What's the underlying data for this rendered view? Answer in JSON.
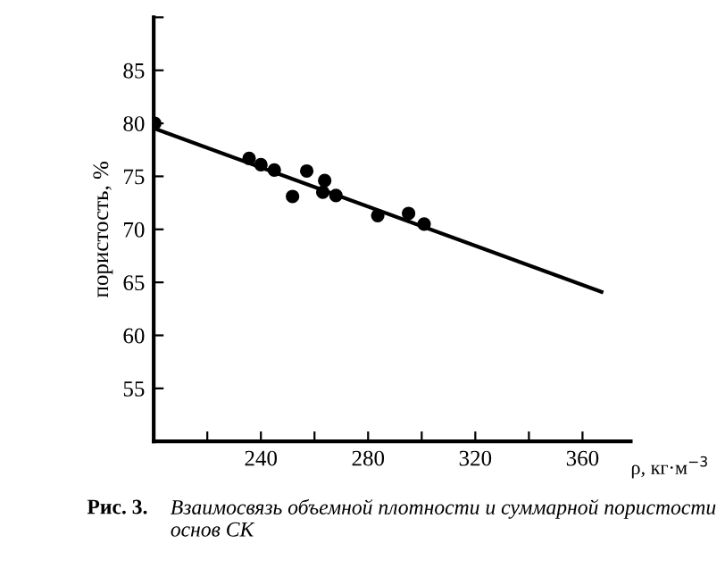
{
  "chart_data": {
    "type": "scatter",
    "xlabel": "ρ, кг·м$^{−3}$",
    "ylabel": "пористость, %",
    "annotations": [
      "Рис. 3.",
      "Взаимосвязь объемной плотности и суммарной пористости основ СК"
    ],
    "series": [
      {
        "color": "#000000",
        "marker": "circle",
        "x": [
          200.4,
          235.6,
          240,
          245,
          251.8,
          257.1,
          263.8,
          263.1,
          268,
          283.6,
          295.1,
          300.9
        ],
        "values": [
          80,
          76.7,
          76.1,
          75.6,
          73.1,
          75.5,
          74.6,
          73.5,
          73.2,
          71.3,
          71.5,
          70.5
        ]
      },
      {
        "type": "line",
        "color": "#000000",
        "x": [
          200.4,
          367.1
        ],
        "values": [
          79.5,
          64.1
        ]
      }
    ],
    "xlim": [
      200,
      378
    ],
    "ylim": [
      50,
      90
    ],
    "xticks": [
      {
        "value": 220,
        "label": null
      },
      240,
      {
        "value": 260,
        "label": null
      },
      280,
      {
        "value": 300,
        "label": null
      },
      320,
      {
        "value": 340,
        "label": null
      },
      360
    ],
    "yticks": [
      55,
      60,
      65,
      70,
      75,
      80,
      85,
      {
        "value": 90,
        "label": null
      }
    ],
    "grid": false,
    "legend": false
  }
}
